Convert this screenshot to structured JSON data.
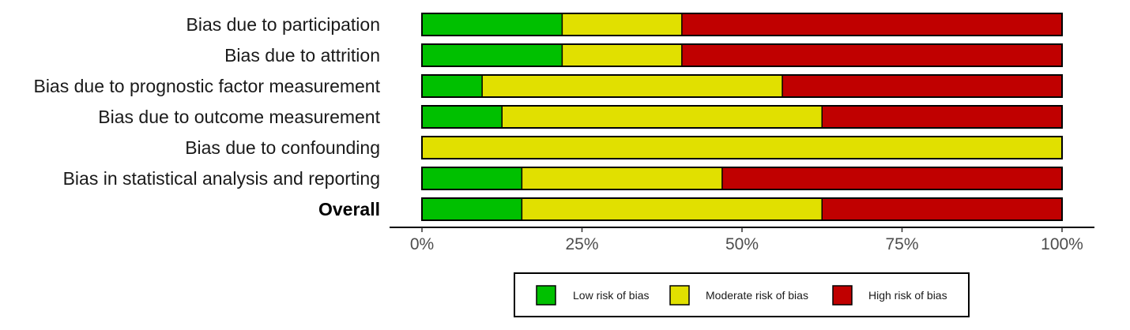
{
  "chart_data": {
    "type": "bar",
    "orientation": "horizontal",
    "stacked": "percent",
    "categories": [
      "Bias due to participation",
      "Bias due to attrition",
      "Bias due to prognostic factor measurement",
      "Bias due to outcome measurement",
      "Bias due to confounding",
      "Bias in statistical analysis and reporting",
      "Overall"
    ],
    "bold_categories": [
      "Overall"
    ],
    "series": [
      {
        "name": "Low risk of bias",
        "color": "#00c000",
        "values": [
          21.9,
          21.9,
          9.4,
          12.5,
          0,
          15.6,
          15.6
        ]
      },
      {
        "name": "Moderate risk of bias",
        "color": "#e1e000",
        "values": [
          18.7,
          18.7,
          46.9,
          50.0,
          100,
          31.3,
          46.9
        ]
      },
      {
        "name": "High risk of bias",
        "color": "#c00000",
        "values": [
          59.4,
          59.4,
          43.7,
          37.5,
          0,
          53.1,
          37.5
        ]
      }
    ],
    "xlim": [
      0,
      100
    ],
    "xticks": [
      0,
      25,
      50,
      75,
      100
    ],
    "xtick_labels": [
      "0%",
      "25%",
      "50%",
      "75%",
      "100%"
    ],
    "grid": false,
    "legend_position": "bottom",
    "xlabel": "",
    "ylabel": "",
    "title": ""
  }
}
